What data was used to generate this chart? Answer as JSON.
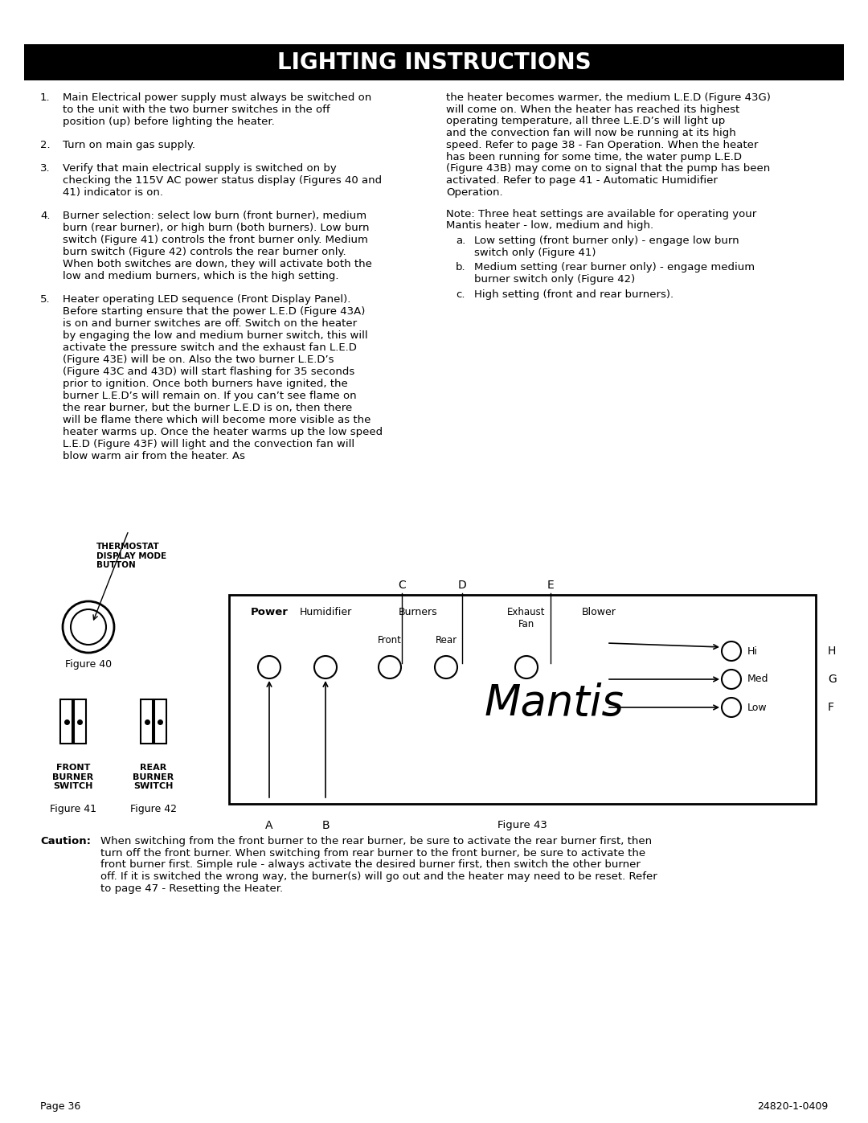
{
  "title": "LIGHTING INSTRUCTIONS",
  "title_bg": "#000000",
  "title_color": "#ffffff",
  "page_bg": "#ffffff",
  "page_num": "Page 36",
  "doc_num": "24820-1-0409",
  "left_col_items": [
    {
      "num": "1.",
      "text": "Main Electrical power supply must always be switched on to the unit with the two burner switches in the off position (up) before lighting the heater."
    },
    {
      "num": "2.",
      "text": "Turn on main gas supply."
    },
    {
      "num": "3.",
      "text": "Verify that main electrical supply is switched on by checking the 115V AC power status display (Figures 40 and 41) indicator is on."
    },
    {
      "num": "4.",
      "text": "Burner selection: select low burn (front burner), medium burn (rear burner), or high burn (both burners). Low burn switch (Figure 41) controls the front burner only. Medium burn switch (Figure 42) controls the rear burner only. When both switches are down, they will activate both the low and medium burners, which is the high setting."
    },
    {
      "num": "5.",
      "text": "Heater operating LED sequence (Front Display Panel). Before starting ensure that the power L.E.D (Figure 43A) is on and burner switches are off. Switch on the heater by engaging the low and medium burner switch, this will activate the pressure switch and the exhaust fan L.E.D (Figure 43E) will be on. Also the two burner L.E.D’s (Figure 43C and 43D) will start flashing for 35 seconds prior to ignition. Once both burners have ignited, the burner L.E.D’s will remain on. If you can’t see flame on the rear burner, but the burner L.E.D is on, then there will be flame there which will become more visible as the heater warms up. Once the heater warms up the low speed L.E.D (Figure 43F) will light and the convection fan will blow warm air from the heater. As"
    }
  ],
  "right_col_text": "the heater becomes warmer, the medium L.E.D (Figure 43G) will come on. When the heater has reached its highest operating temperature, all three L.E.D’s will light up and the convection fan will now be running at its high speed. Refer to page 38 - Fan Operation. When the heater has been running for some time, the water pump L.E.D (Figure 43B) may come on to signal that the pump has been activated. Refer to page 41 - Automatic Humidifier Operation.",
  "note_text": "Note: Three heat settings are available for operating your Mantis heater - low, medium and high.",
  "note_items": [
    {
      "letter": "a.",
      "text": "Low setting (front burner only) - engage low burn switch only (Figure 41)"
    },
    {
      "letter": "b.",
      "text": "Medium setting (rear burner only) - engage medium burner switch only (Figure 42)"
    },
    {
      "letter": "c.",
      "text": "High setting (front and rear burners)."
    }
  ],
  "caution_label": "Caution:",
  "caution_text": "When switching from the front burner to the rear burner, be sure to activate the rear burner first, then turn off the front burner. When switching from rear burner to the front burner, be sure to activate the front burner first. Simple rule - always activate the desired burner first, then switch the other burner off. If it is switched the wrong way, the burner(s) will go out and the heater may need to be reset. Refer to page 47 - Resetting the Heater.",
  "fig40_label": "Figure 40",
  "fig41_label": "Figure 41",
  "fig42_label": "Figure 42",
  "fig43_label": "Figure 43",
  "thermostat_label": "THERMOSTAT\nDISPLAY MODE\nBUTTON",
  "front_burner_label": "FRONT\nBURNER\nSWITCH",
  "rear_burner_label": "REAR\nBURNER\nSWITCH",
  "panel_labels_top": [
    "C",
    "D",
    "E"
  ],
  "panel_labels_right": [
    "H",
    "G",
    "F"
  ],
  "panel_text_top": [
    "Power",
    "Humidifier",
    "Burners",
    "Exhaust\nFan",
    "Blower"
  ],
  "panel_text_bold": [
    "Power"
  ],
  "panel_leds": [
    "Hi",
    "Med",
    "Low"
  ],
  "panel_bottom_labels": [
    "A",
    "B"
  ],
  "mantis_script": "Mantis"
}
